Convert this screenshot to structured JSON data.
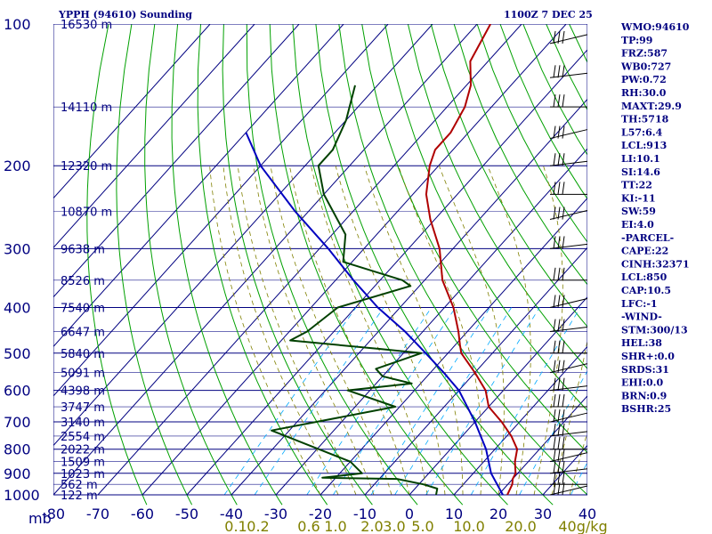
{
  "header": {
    "title": "YPPH (94610) Sounding",
    "time": "1100Z  7 DEC 25"
  },
  "indices": [
    "WMO:94610",
    "TP:99",
    "FRZ:587",
    "WB0:727",
    "PW:0.72",
    "RH:30.0",
    "MAXT:29.9",
    "TH:5718",
    "L57:6.4",
    "LCL:913",
    "LI:10.1",
    "SI:14.6",
    "TT:22",
    "KI:-11",
    "SW:59",
    "EI:4.0",
    "-PARCEL-",
    "CAPE:22",
    "CINH:32371",
    "LCL:850",
    "CAP:10.5",
    "LFC:-1",
    "-WIND-",
    "STM:300/13",
    "HEL:38",
    "SHR+:0.0",
    "SRDS:31",
    "EHI:0.0",
    "BRN:0.9",
    "BSHR:25"
  ],
  "colors": {
    "isobar": "#000080",
    "isotherm": "#000080",
    "dry_adiabat": "#00a000",
    "moist_adiabat": "#808000",
    "mixing_ratio": "#00aaff",
    "temperature": "#b00000",
    "dewpoint": "#004000",
    "parcel": "#0000c0",
    "wind_barb": "#000000"
  },
  "chart_data": {
    "type": "line",
    "diagram": "skew-T log-p",
    "title": "YPPH (94610) Sounding",
    "y_unit_label": "mb",
    "y_scale": "log",
    "ylim": [
      1000,
      100
    ],
    "xlim": [
      -80,
      40
    ],
    "pressure_ticks": [
      100,
      200,
      300,
      400,
      500,
      600,
      700,
      800,
      900,
      1000
    ],
    "temperature_ticks": [
      -80,
      -70,
      -60,
      -50,
      -40,
      -30,
      -20,
      -10,
      0,
      10,
      20,
      30,
      40
    ],
    "height_labels": [
      {
        "p": 100,
        "label": "16530 m"
      },
      {
        "p": 150,
        "label": "14110 m"
      },
      {
        "p": 200,
        "label": "12320 m"
      },
      {
        "p": 250,
        "label": "10870 m"
      },
      {
        "p": 300,
        "label": "9638 m"
      },
      {
        "p": 350,
        "label": "8526 m"
      },
      {
        "p": 400,
        "label": "7540 m"
      },
      {
        "p": 450,
        "label": "6647 m"
      },
      {
        "p": 500,
        "label": "5840 m"
      },
      {
        "p": 550,
        "label": "5091 m"
      },
      {
        "p": 600,
        "label": "4398 m"
      },
      {
        "p": 650,
        "label": "3747 m"
      },
      {
        "p": 700,
        "label": "3140 m"
      },
      {
        "p": 750,
        "label": "2554 m"
      },
      {
        "p": 800,
        "label": "2022 m"
      },
      {
        "p": 850,
        "label": "1509 m"
      },
      {
        "p": 900,
        "label": "1023 m"
      },
      {
        "p": 950,
        "label": "562 m"
      },
      {
        "p": 1000,
        "label": "122 m"
      }
    ],
    "mixing_ratio_labels": [
      "0.1",
      "0.2",
      "0.6",
      "1.0",
      "2.0",
      "3.0",
      "5.0",
      "10.0",
      "20.0",
      "40g/kg"
    ],
    "temperature": [
      {
        "p": 100,
        "t": -77
      },
      {
        "p": 120,
        "t": -74
      },
      {
        "p": 135,
        "t": -69
      },
      {
        "p": 150,
        "t": -66
      },
      {
        "p": 170,
        "t": -64
      },
      {
        "p": 185,
        "t": -64
      },
      {
        "p": 200,
        "t": -62
      },
      {
        "p": 230,
        "t": -57
      },
      {
        "p": 260,
        "t": -51
      },
      {
        "p": 300,
        "t": -43
      },
      {
        "p": 350,
        "t": -36
      },
      {
        "p": 400,
        "t": -28
      },
      {
        "p": 450,
        "t": -22
      },
      {
        "p": 480,
        "t": -19
      },
      {
        "p": 500,
        "t": -17
      },
      {
        "p": 550,
        "t": -10
      },
      {
        "p": 600,
        "t": -4
      },
      {
        "p": 650,
        "t": 0
      },
      {
        "p": 700,
        "t": 6
      },
      {
        "p": 750,
        "t": 11
      },
      {
        "p": 800,
        "t": 15
      },
      {
        "p": 850,
        "t": 17
      },
      {
        "p": 900,
        "t": 19.5
      },
      {
        "p": 925,
        "t": 20
      },
      {
        "p": 950,
        "t": 21
      },
      {
        "p": 1000,
        "t": 22
      }
    ],
    "dewpoint": [
      {
        "p": 135,
        "t": -95
      },
      {
        "p": 160,
        "t": -90
      },
      {
        "p": 185,
        "t": -87
      },
      {
        "p": 200,
        "t": -87
      },
      {
        "p": 230,
        "t": -80
      },
      {
        "p": 280,
        "t": -67
      },
      {
        "p": 320,
        "t": -62
      },
      {
        "p": 350,
        "t": -45
      },
      {
        "p": 360,
        "t": -42
      },
      {
        "p": 400,
        "t": -54
      },
      {
        "p": 450,
        "t": -56
      },
      {
        "p": 470,
        "t": -58
      },
      {
        "p": 490,
        "t": -36
      },
      {
        "p": 500,
        "t": -26
      },
      {
        "p": 540,
        "t": -33
      },
      {
        "p": 560,
        "t": -30
      },
      {
        "p": 580,
        "t": -22
      },
      {
        "p": 600,
        "t": -35
      },
      {
        "p": 650,
        "t": -21
      },
      {
        "p": 730,
        "t": -44
      },
      {
        "p": 850,
        "t": -20
      },
      {
        "p": 900,
        "t": -15
      },
      {
        "p": 920,
        "t": -23
      },
      {
        "p": 925,
        "t": -6
      },
      {
        "p": 950,
        "t": 1
      },
      {
        "p": 970,
        "t": 5
      },
      {
        "p": 1000,
        "t": 6
      }
    ],
    "parcel": [
      {
        "p": 170,
        "t": -110
      },
      {
        "p": 200,
        "t": -100
      },
      {
        "p": 250,
        "t": -83
      },
      {
        "p": 300,
        "t": -68
      },
      {
        "p": 350,
        "t": -56
      },
      {
        "p": 400,
        "t": -45
      },
      {
        "p": 450,
        "t": -34
      },
      {
        "p": 500,
        "t": -25
      },
      {
        "p": 550,
        "t": -17
      },
      {
        "p": 600,
        "t": -10
      },
      {
        "p": 700,
        "t": 0
      },
      {
        "p": 800,
        "t": 8
      },
      {
        "p": 900,
        "t": 14
      },
      {
        "p": 1000,
        "t": 21
      }
    ]
  }
}
